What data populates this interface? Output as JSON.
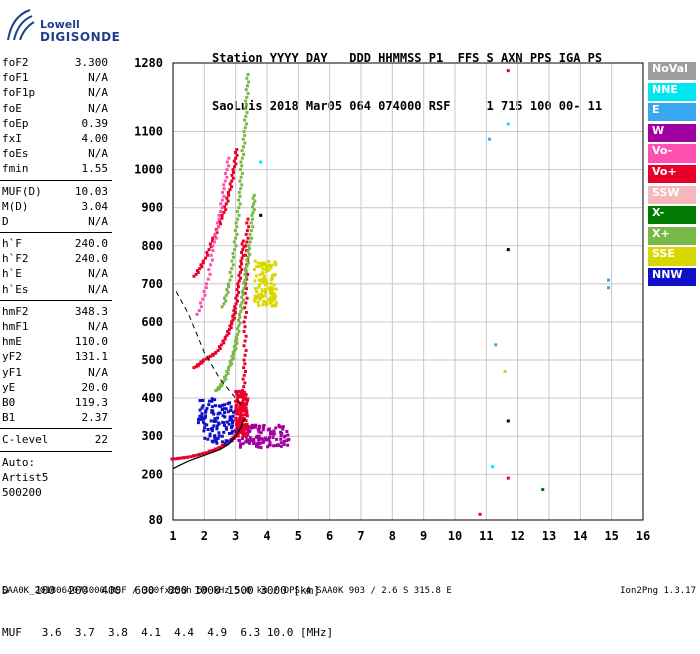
{
  "logo": {
    "line1": "Lowell",
    "line2": "DIGISONDE"
  },
  "header": {
    "line1": "Station YYYY DAY   DDD HHMMSS P1  FFS S AXN PPS IGA PS",
    "line2": "SaoLuis 2018 Mar05 064 074000 RSF     1 715 100 00- 11"
  },
  "params": {
    "group1": [
      {
        "name": "foF2",
        "value": "3.300"
      },
      {
        "name": "foF1",
        "value": "N/A"
      },
      {
        "name": "foF1p",
        "value": "N/A"
      },
      {
        "name": "foE",
        "value": "N/A"
      },
      {
        "name": "foEp",
        "value": "0.39"
      },
      {
        "name": "fxI",
        "value": "4.00"
      },
      {
        "name": "foEs",
        "value": "N/A"
      },
      {
        "name": "fmin",
        "value": "1.55"
      }
    ],
    "group2": [
      {
        "name": "MUF(D)",
        "value": "10.03"
      },
      {
        "name": "M(D)",
        "value": "3.04"
      },
      {
        "name": "D",
        "value": "N/A"
      }
    ],
    "group3": [
      {
        "name": "h`F",
        "value": "240.0"
      },
      {
        "name": "h`F2",
        "value": "240.0"
      },
      {
        "name": "h`E",
        "value": "N/A"
      },
      {
        "name": "h`Es",
        "value": "N/A"
      }
    ],
    "group4": [
      {
        "name": "hmF2",
        "value": "348.3"
      },
      {
        "name": "hmF1",
        "value": "N/A"
      },
      {
        "name": "hmE",
        "value": "110.0"
      },
      {
        "name": "yF2",
        "value": "131.1"
      },
      {
        "name": "yF1",
        "value": "N/A"
      },
      {
        "name": "yE",
        "value": "20.0"
      },
      {
        "name": "B0",
        "value": "119.3"
      },
      {
        "name": "B1",
        "value": "2.37"
      }
    ],
    "group5": [
      {
        "name": "C-level",
        "value": "22"
      }
    ]
  },
  "auto": {
    "line1": "Auto:",
    "line2": "Artist5",
    "line3": "500200"
  },
  "legend": [
    {
      "label": "NoVal",
      "color": "#9e9e9e"
    },
    {
      "label": "NNE",
      "color": "#00e5ee"
    },
    {
      "label": "E",
      "color": "#38a6f0"
    },
    {
      "label": "W",
      "color": "#a000a0"
    },
    {
      "label": "Vo-",
      "color": "#ff4fb0"
    },
    {
      "label": "Vo+",
      "color": "#e8002a"
    },
    {
      "label": "SSW",
      "color": "#f5b8b8"
    },
    {
      "label": "X-",
      "color": "#007a00"
    },
    {
      "label": "X+",
      "color": "#78b848"
    },
    {
      "label": "SSE",
      "color": "#d8d800"
    },
    {
      "label": "NNW",
      "color": "#1010c8"
    }
  ],
  "bottom": {
    "line1": "D    100  200  400  600  800 1000 1500 3000 [km]",
    "line2": "MUF   3.6  3.7  3.8  4.1  4.4  4.9  6.3 10.0 [MHz]"
  },
  "footer": "SAA0K_2018064074000.RSF / 300fx256h 50 kHz 5.0 km / DPS-4 SAA0K 903 / 2.6 S 315.8 E",
  "version": "Ion2Png 1.3.17",
  "chart_data": {
    "type": "scatter",
    "xlim": [
      1,
      16
    ],
    "ylim": [
      80,
      1280
    ],
    "xticks": [
      1,
      2,
      3,
      4,
      5,
      6,
      7,
      8,
      9,
      10,
      11,
      12,
      13,
      14,
      15,
      16
    ],
    "yticks": [
      80,
      200,
      300,
      400,
      500,
      600,
      700,
      800,
      900,
      1000,
      1100,
      1280
    ],
    "grid": true,
    "profile": [
      [
        1.0,
        215
      ],
      [
        1.5,
        235
      ],
      [
        2.0,
        250
      ],
      [
        2.5,
        265
      ],
      [
        2.8,
        280
      ],
      [
        3.0,
        300
      ],
      [
        3.15,
        320
      ],
      [
        3.25,
        340
      ],
      [
        3.3,
        348
      ]
    ],
    "dashed_profile": [
      [
        1.1,
        680
      ],
      [
        1.5,
        620
      ],
      [
        2.0,
        520
      ],
      [
        2.5,
        450
      ],
      [
        3.0,
        400
      ],
      [
        3.2,
        380
      ]
    ],
    "traces": [
      {
        "color": "#e8002a",
        "points": [
          [
            1.0,
            240
          ],
          [
            1.5,
            245
          ],
          [
            2.0,
            255
          ],
          [
            2.5,
            270
          ],
          [
            2.8,
            285
          ],
          [
            3.0,
            300
          ],
          [
            3.1,
            320
          ],
          [
            3.2,
            360
          ],
          [
            3.25,
            420
          ],
          [
            3.3,
            500
          ],
          [
            3.3,
            600
          ],
          [
            3.35,
            700
          ],
          [
            3.35,
            800
          ],
          [
            3.4,
            880
          ]
        ]
      },
      {
        "color": "#e8002a",
        "points": [
          [
            1.7,
            480
          ],
          [
            2.0,
            500
          ],
          [
            2.4,
            520
          ],
          [
            2.7,
            560
          ],
          [
            2.9,
            600
          ],
          [
            3.0,
            640
          ],
          [
            3.1,
            700
          ],
          [
            3.2,
            760
          ],
          [
            3.25,
            820
          ]
        ]
      },
      {
        "color": "#e8002a",
        "points": [
          [
            1.7,
            720
          ],
          [
            2.0,
            760
          ],
          [
            2.3,
            820
          ],
          [
            2.6,
            880
          ],
          [
            2.8,
            940
          ],
          [
            2.95,
            1000
          ],
          [
            3.05,
            1060
          ]
        ]
      },
      {
        "color": "#78b848",
        "points": [
          [
            2.4,
            420
          ],
          [
            2.6,
            440
          ],
          [
            2.8,
            480
          ],
          [
            2.95,
            520
          ],
          [
            3.05,
            560
          ],
          [
            3.15,
            620
          ],
          [
            3.25,
            680
          ],
          [
            3.35,
            740
          ],
          [
            3.45,
            800
          ],
          [
            3.55,
            880
          ],
          [
            3.6,
            940
          ]
        ]
      },
      {
        "color": "#78b848",
        "points": [
          [
            2.6,
            640
          ],
          [
            2.8,
            700
          ],
          [
            2.95,
            780
          ],
          [
            3.05,
            860
          ],
          [
            3.15,
            940
          ],
          [
            3.2,
            1020
          ],
          [
            3.3,
            1100
          ],
          [
            3.35,
            1180
          ],
          [
            3.4,
            1260
          ]
        ]
      },
      {
        "color": "#ff4fb0",
        "points": [
          [
            1.8,
            620
          ],
          [
            2.1,
            700
          ],
          [
            2.3,
            800
          ],
          [
            2.5,
            880
          ],
          [
            2.65,
            960
          ],
          [
            2.8,
            1040
          ]
        ]
      }
    ],
    "clusters": [
      {
        "color": "#a000a0",
        "x": [
          3.1,
          4.7
        ],
        "y": [
          270,
          330
        ]
      },
      {
        "color": "#1010c8",
        "x": [
          1.8,
          3.1
        ],
        "y": [
          280,
          400
        ]
      },
      {
        "color": "#d8d800",
        "x": [
          3.6,
          4.3
        ],
        "y": [
          640,
          760
        ]
      },
      {
        "color": "#e8002a",
        "x": [
          3.0,
          3.4
        ],
        "y": [
          300,
          420
        ]
      }
    ],
    "isolated": [
      {
        "color": "#00e5ee",
        "x": 11.7,
        "y": 1120
      },
      {
        "color": "#e8002a",
        "x": 11.7,
        "y": 1260
      },
      {
        "color": "#38a6f0",
        "x": 11.1,
        "y": 1080
      },
      {
        "color": "#000000",
        "x": 11.7,
        "y": 790
      },
      {
        "color": "#38a6f0",
        "x": 11.3,
        "y": 540
      },
      {
        "color": "#d8d800",
        "x": 11.6,
        "y": 470
      },
      {
        "color": "#000000",
        "x": 11.7,
        "y": 340
      },
      {
        "color": "#00e5ee",
        "x": 11.2,
        "y": 220
      },
      {
        "color": "#e8002a",
        "x": 11.7,
        "y": 190
      },
      {
        "color": "#007a00",
        "x": 12.8,
        "y": 160
      },
      {
        "color": "#38a6f0",
        "x": 14.9,
        "y": 710
      },
      {
        "color": "#38a6f0",
        "x": 14.9,
        "y": 690
      },
      {
        "color": "#e8002a",
        "x": 10.8,
        "y": 95
      },
      {
        "color": "#00e5ee",
        "x": 3.8,
        "y": 1020
      },
      {
        "color": "#000000",
        "x": 3.8,
        "y": 880
      }
    ]
  }
}
